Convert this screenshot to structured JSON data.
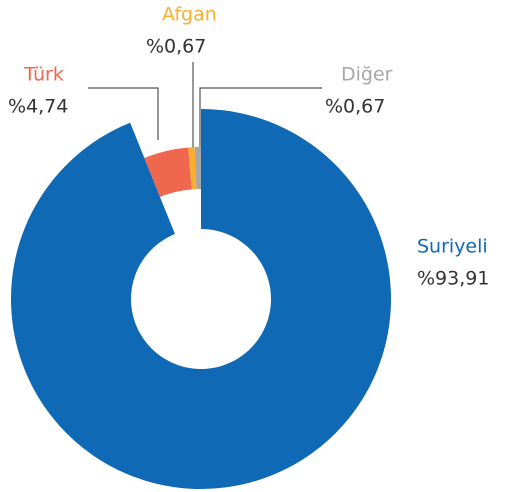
{
  "chart_data": {
    "type": "pie",
    "categories": [
      "Suriyeli",
      "Türk",
      "Afgan",
      "Diğer"
    ],
    "values": [
      93.91,
      4.74,
      0.67,
      0.67
    ],
    "value_labels": [
      "%93,91",
      "%4,74",
      "%0,67",
      "%0,67"
    ],
    "colors": [
      "#0f69b4",
      "#f0674f",
      "#f9ae2e",
      "#a7a7a7"
    ]
  }
}
